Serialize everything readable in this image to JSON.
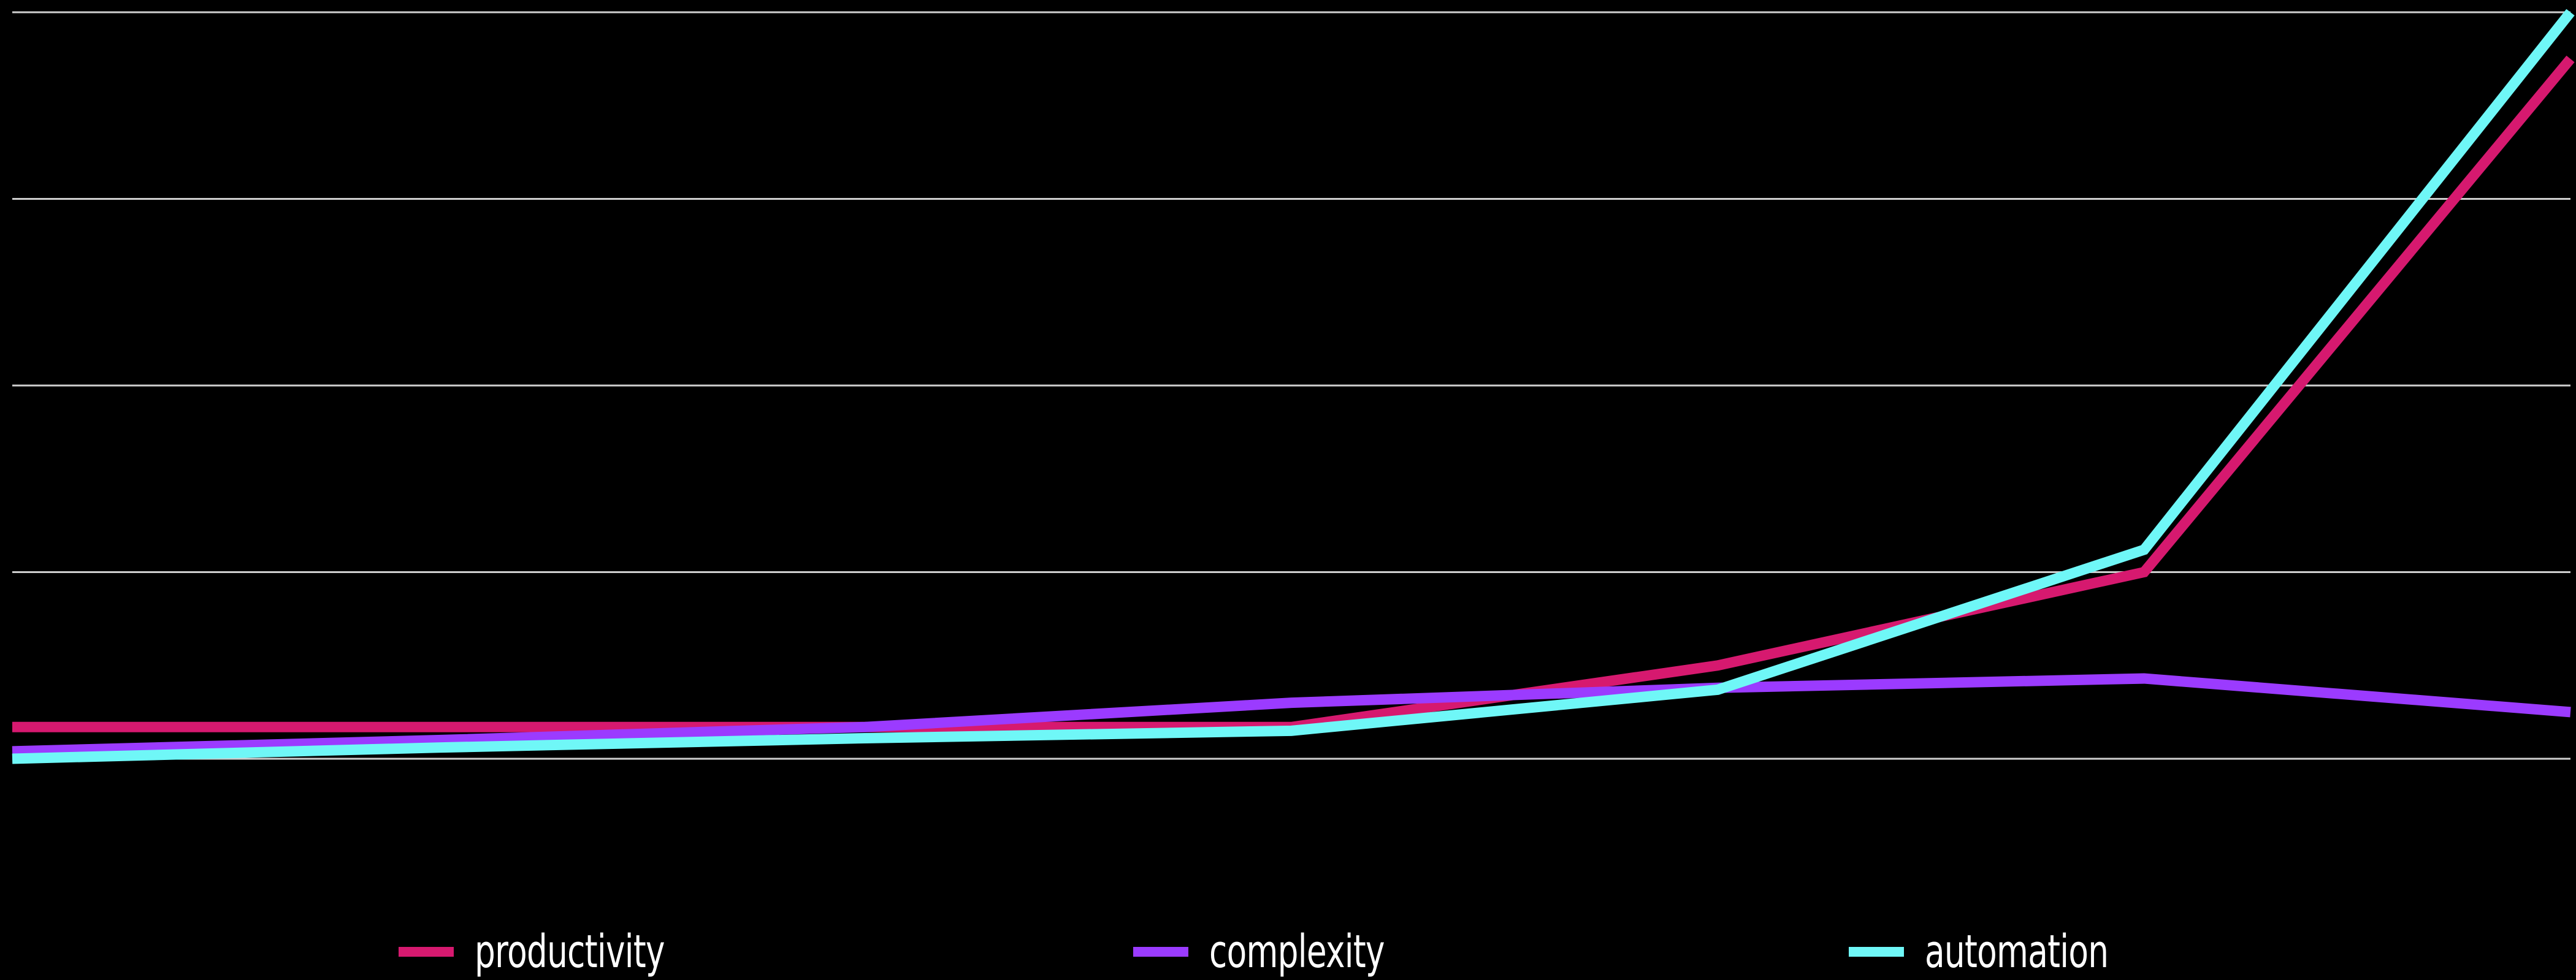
{
  "chart_data": {
    "type": "line",
    "title": "",
    "xlabel": "",
    "ylabel": "",
    "x": [
      0,
      1,
      2,
      3,
      4,
      5,
      6
    ],
    "ylim": [
      0,
      40
    ],
    "yticks": [
      0,
      10,
      20,
      30,
      40
    ],
    "grid": true,
    "legend_position": "bottom",
    "series": [
      {
        "name": "productivity",
        "color": "#d6196f",
        "values": [
          1.7,
          1.7,
          1.7,
          1.7,
          5.0,
          10.0,
          37.5
        ]
      },
      {
        "name": "complexity",
        "color": "#9b3bff",
        "values": [
          0.4,
          1.0,
          1.7,
          3.0,
          3.8,
          4.3,
          2.5
        ]
      },
      {
        "name": "automation",
        "color": "#6ff7f7",
        "values": [
          0.0,
          0.6,
          1.1,
          1.5,
          3.7,
          11.2,
          40.0
        ]
      }
    ]
  }
}
